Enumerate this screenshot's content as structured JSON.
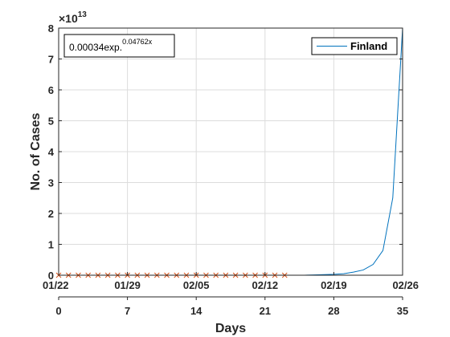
{
  "chart_data": {
    "type": "line",
    "xlabel": "Days",
    "ylabel": "No. of Cases",
    "xlim": [
      0,
      35
    ],
    "ylim": [
      0,
      80000000000000
    ],
    "y_exponent_label": {
      "base": "×10",
      "power": "13"
    },
    "x_ticks": [
      "0",
      "7",
      "14",
      "21",
      "28",
      "35"
    ],
    "x_tick_values": [
      0,
      7,
      14,
      21,
      28,
      35
    ],
    "date_ticks": [
      "01/22",
      "01/29",
      "02/05",
      "02/12",
      "02/19",
      "02/26"
    ],
    "y_ticks": [
      "0",
      "1",
      "2",
      "3",
      "4",
      "5",
      "6",
      "7",
      "8"
    ],
    "y_tick_values": [
      0,
      10000000000000,
      20000000000000,
      30000000000000,
      40000000000000,
      50000000000000,
      60000000000000,
      70000000000000,
      80000000000000
    ],
    "grid": true,
    "legend_position": "top-right",
    "annotation": {
      "base": "0.00034exp.",
      "power": "0.04762x"
    },
    "series": [
      {
        "name": "Finland",
        "color": "#0072bd",
        "style": "line",
        "x": [
          0,
          25,
          26,
          27,
          28,
          29,
          30,
          31,
          32,
          33,
          34,
          35
        ],
        "y": [
          0,
          0,
          100000000000,
          200000000000,
          300000000000,
          500000000000,
          1000000000000,
          1700000000000,
          3500000000000,
          8000000000000,
          25000000000000,
          80000000000000
        ]
      },
      {
        "name": "",
        "color": "#d95319",
        "style": "marker-x",
        "x": [
          0,
          1,
          2,
          3,
          4,
          5,
          6,
          7,
          8,
          9,
          10,
          11,
          12,
          13,
          14,
          15,
          16,
          17,
          18,
          19,
          20,
          21,
          22,
          23
        ],
        "y": [
          0,
          0,
          0,
          0,
          0,
          0,
          0,
          0,
          0,
          0,
          0,
          0,
          0,
          0,
          0,
          0,
          0,
          0,
          0,
          0,
          0,
          0,
          0,
          0
        ]
      }
    ]
  }
}
